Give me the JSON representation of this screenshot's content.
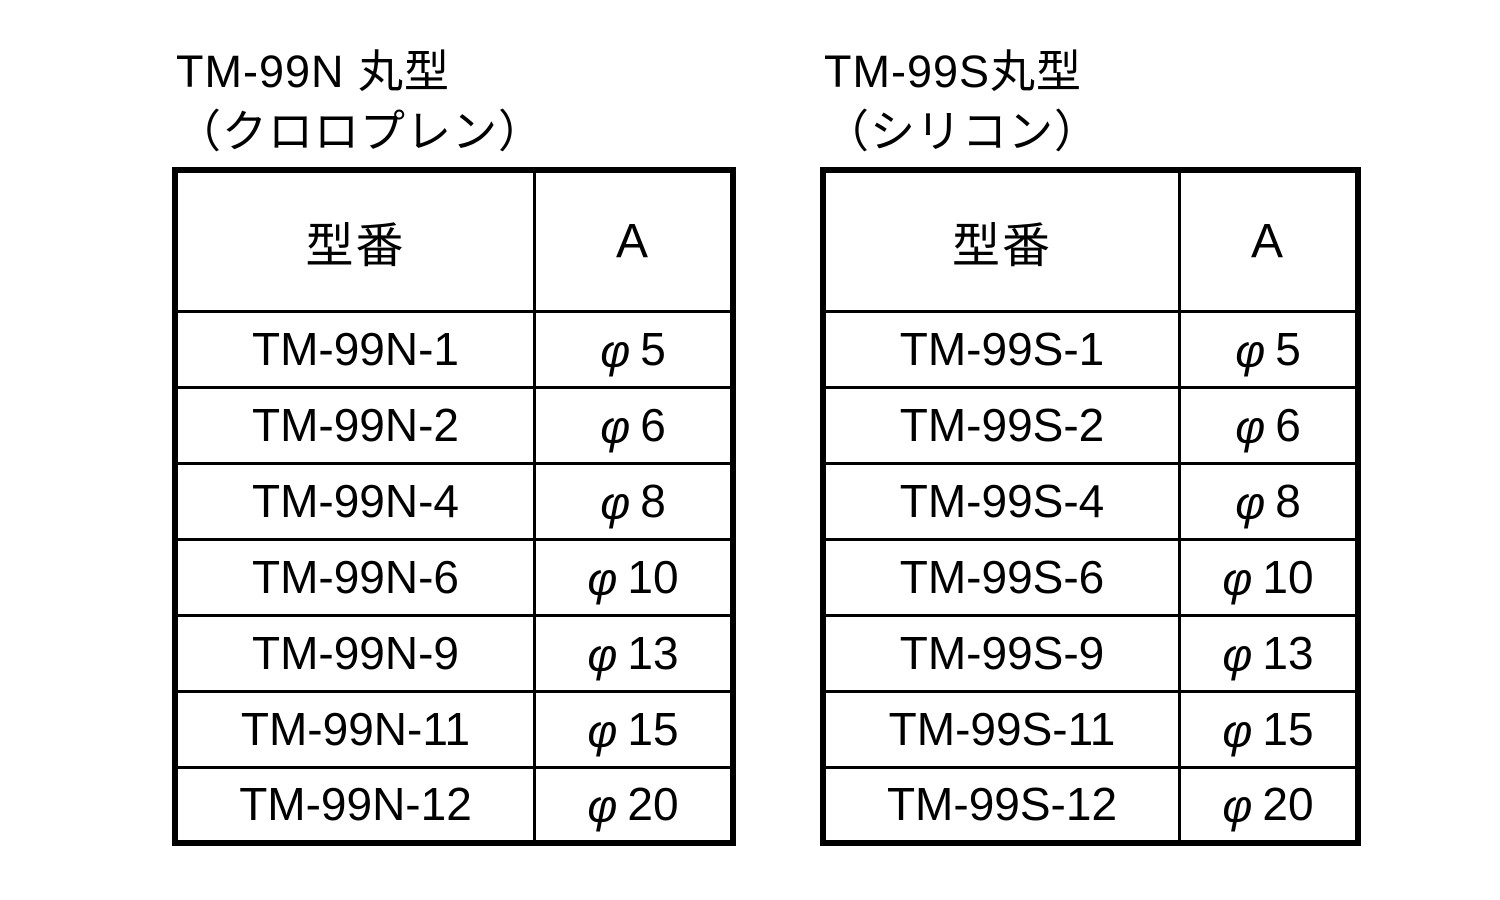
{
  "page": {
    "background": "#ffffff",
    "text_color": "#000000",
    "border_color": "#000000"
  },
  "tables": [
    {
      "id": "tm-99n",
      "title_line1": "TM-99N 丸型",
      "title_line2": "（クロロプレン）",
      "columns": [
        "型番",
        "A"
      ],
      "rows": [
        {
          "model": "TM-99N-1",
          "a": "φ5"
        },
        {
          "model": "TM-99N-2",
          "a": "φ6"
        },
        {
          "model": "TM-99N-4",
          "a": "φ8"
        },
        {
          "model": "TM-99N-6",
          "a": "φ10"
        },
        {
          "model": "TM-99N-9",
          "a": "φ13"
        },
        {
          "model": "TM-99N-11",
          "a": "φ15"
        },
        {
          "model": "TM-99N-12",
          "a": "φ20"
        }
      ]
    },
    {
      "id": "tm-99s",
      "title_line1": "TM-99S丸型",
      "title_line2": "（シリコン）",
      "columns": [
        "型番",
        "A"
      ],
      "rows": [
        {
          "model": "TM-99S-1",
          "a": "φ5"
        },
        {
          "model": "TM-99S-2",
          "a": "φ6"
        },
        {
          "model": "TM-99S-4",
          "a": "φ8"
        },
        {
          "model": "TM-99S-6",
          "a": "φ10"
        },
        {
          "model": "TM-99S-9",
          "a": "φ13"
        },
        {
          "model": "TM-99S-11",
          "a": "φ15"
        },
        {
          "model": "TM-99S-12",
          "a": "φ20"
        }
      ]
    }
  ]
}
